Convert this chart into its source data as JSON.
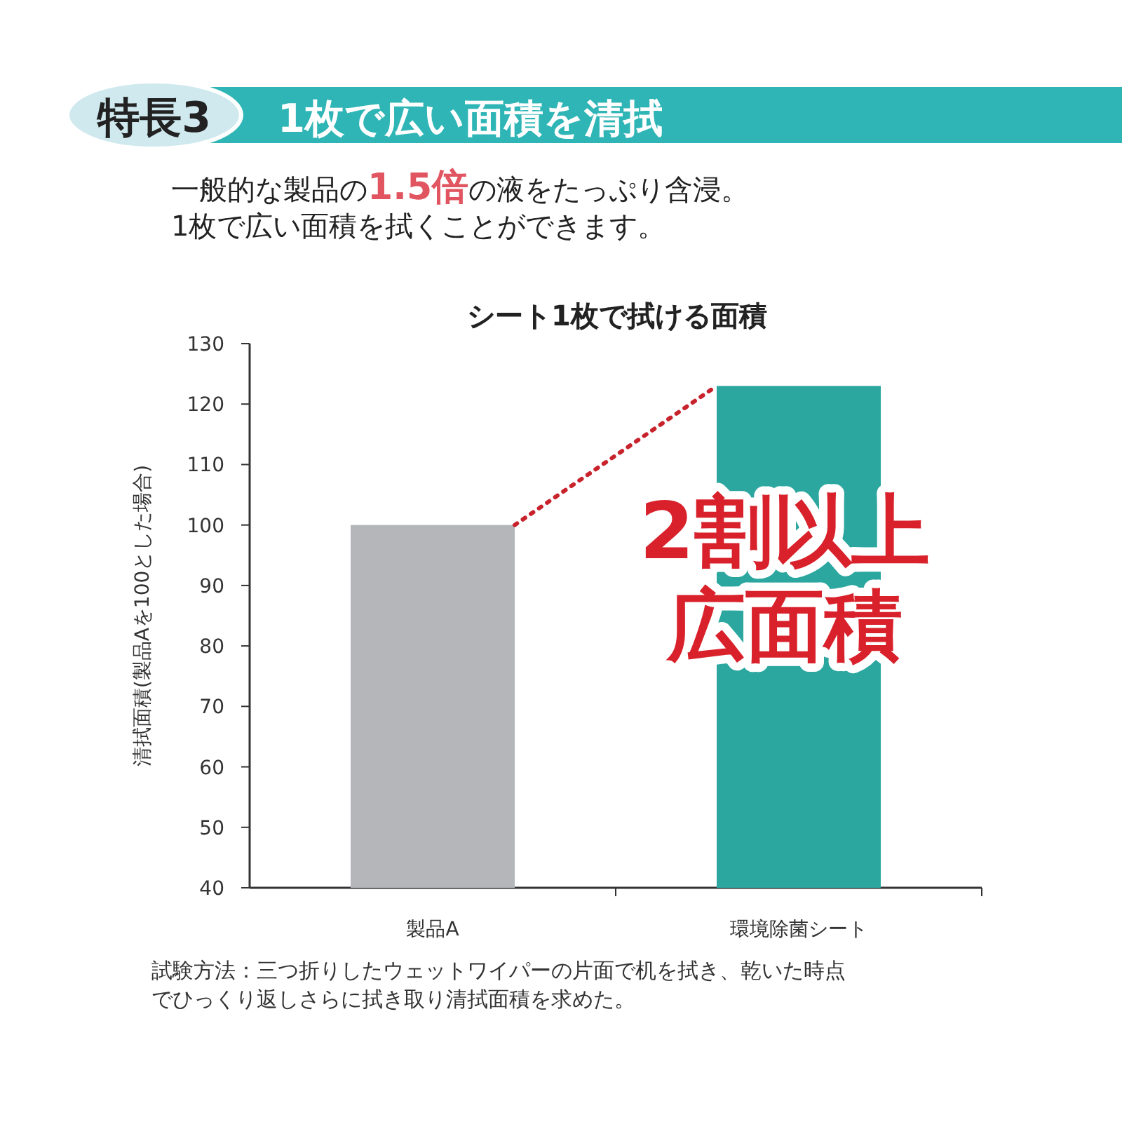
{
  "chart_data": {
    "type": "bar",
    "title": "1枚で広い面積を清拭",
    "subtitle": "一般的な製品の**1.5倍**の液をたっぷり含浸。1枚で広い面積を拭くことができます。",
    "annotations": [
      "特長3",
      "シート1枚で拭ける面積",
      {
        "text": "2割以上広面積",
        "x": "環境除菌シート",
        "y": 123
      },
      "試験方法：三つ折りしたウェットワイパーの片面で机を拭き、乾いた時点でひっくり返しさらに拭き取り清拭面積を求めた。"
    ],
    "ylabel": "清拭面積(製品Aを100とした場合)",
    "categories": [
      "製品A",
      "環境除菌シート"
    ],
    "values": [
      100,
      123
    ],
    "colors": [
      "#b4b6ba",
      "#2ba7a0"
    ],
    "ylim": [
      40,
      130
    ],
    "yticks": [
      40,
      50,
      60,
      70,
      80,
      90,
      100,
      110,
      120,
      130
    ]
  }
}
